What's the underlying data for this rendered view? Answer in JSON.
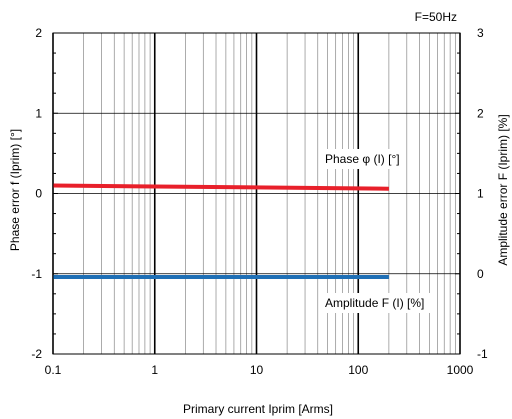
{
  "chart_data": {
    "type": "line",
    "annotation_top": "F=50Hz",
    "xlabel": "Primary current Iprim [Arms]",
    "ylabel_left": "Phase error f (Iprim) [°]",
    "ylabel_right": "Amplitude error F (Iprim) [%]",
    "x_scale": "log",
    "xlim": [
      0.1,
      1000
    ],
    "ylim_left": [
      -2,
      2
    ],
    "ylim_right": [
      -1,
      3
    ],
    "x_ticks": [
      "0.1",
      "1",
      "10",
      "100",
      "1000"
    ],
    "y_ticks_left": [
      "-2",
      "-1",
      "0",
      "1",
      "2"
    ],
    "y_ticks_right": [
      "-1",
      "0",
      "1",
      "2",
      "3"
    ],
    "grid": true,
    "series": [
      {
        "name": "Phase φ (I) [°]",
        "axis": "left",
        "color": "#e8202a",
        "x": [
          0.1,
          200
        ],
        "y": [
          0.1,
          0.06
        ]
      },
      {
        "name": "Amplitude F (I) [%]",
        "axis": "right",
        "color": "#1f6fb5",
        "x": [
          0.1,
          200
        ],
        "y": [
          -0.04,
          -0.04
        ]
      }
    ]
  }
}
